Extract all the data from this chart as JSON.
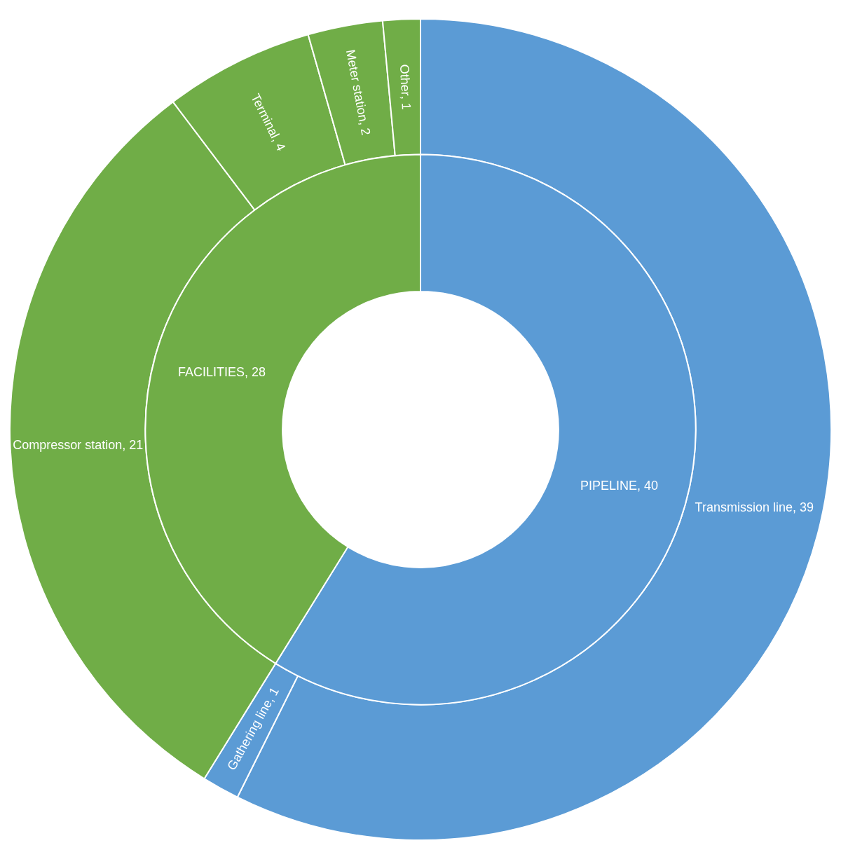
{
  "chart_data": [
    {
      "type": "donut",
      "categories": [
        "PIPELINE",
        "FACILITIES"
      ],
      "values": [
        40,
        28
      ],
      "value_labels": [
        ", 40",
        ", 28"
      ],
      "colors": [
        "#5b9bd5",
        "#70ad47"
      ]
    },
    {
      "type": "donut",
      "categories": [
        "Transmission line",
        "Gathering line",
        "Compressor station",
        "Terminal",
        "Meter station",
        "Other"
      ],
      "values": [
        39,
        1,
        21,
        4,
        2,
        1
      ],
      "value_labels": [
        ", 39",
        ", 1",
        ", 21",
        ", 4",
        ", 2",
        ", 1"
      ],
      "colors": [
        "#5b9bd5",
        "#5b9bd5",
        "#70ad47",
        "#70ad47",
        "#70ad47",
        "#70ad47"
      ]
    }
  ]
}
